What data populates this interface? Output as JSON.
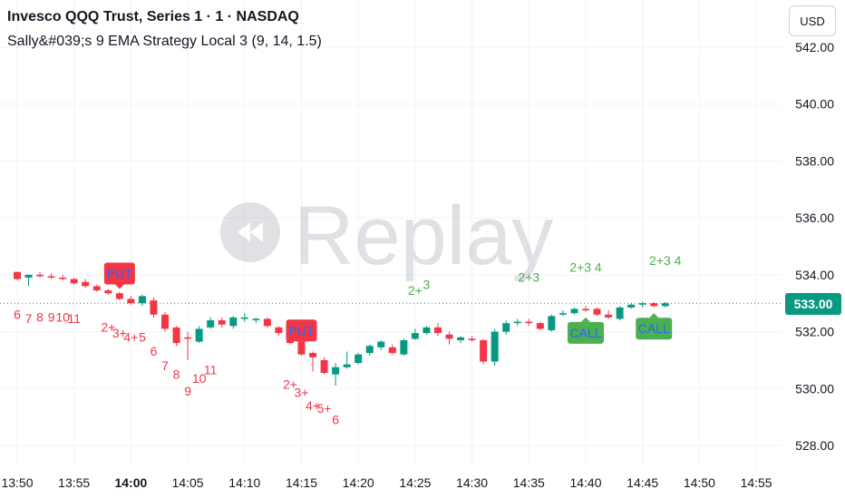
{
  "header": {
    "title": "Invesco QQQ Trust, Series 1 · 1 · NASDAQ",
    "subtitle": "Sally&#039;s 9 EMA Strategy Local 3 (9, 14, 1.5)",
    "currency": "USD"
  },
  "watermark": {
    "text": "Replay",
    "icon": "replay-icon"
  },
  "price_tag": "533.00",
  "colors": {
    "up": "#089981",
    "down": "#f23645",
    "call": "#4caf50",
    "put": "#f23645",
    "label_text": "#2962ff",
    "grid": "#f0f3fa"
  },
  "chart_data": {
    "type": "candlestick",
    "ylim": [
      527.3,
      543.2
    ],
    "yticks": [
      528,
      530,
      532,
      534,
      536,
      538,
      540,
      542
    ],
    "ytick_labels": [
      "528.00",
      "530.00",
      "532.00",
      "534.00",
      "536.00",
      "538.00",
      "540.00",
      "542.00"
    ],
    "xticks": [
      "13:50",
      "13:55",
      "14:00",
      "14:05",
      "14:10",
      "14:15",
      "14:20",
      "14:25",
      "14:30",
      "14:35",
      "14:40",
      "14:45",
      "14:50",
      "14:55"
    ],
    "last_price": 533.0,
    "candles": [
      {
        "t": "13:50",
        "o": 534.1,
        "h": 534.1,
        "l": 533.8,
        "c": 533.85
      },
      {
        "t": "13:51",
        "o": 533.9,
        "h": 534.0,
        "l": 533.6,
        "c": 534.0
      },
      {
        "t": "13:52",
        "o": 534.0,
        "h": 534.1,
        "l": 533.9,
        "c": 533.95
      },
      {
        "t": "13:53",
        "o": 533.95,
        "h": 534.05,
        "l": 533.85,
        "c": 533.9
      },
      {
        "t": "13:54",
        "o": 533.9,
        "h": 534.0,
        "l": 533.8,
        "c": 533.85
      },
      {
        "t": "13:55",
        "o": 533.85,
        "h": 533.9,
        "l": 533.65,
        "c": 533.7
      },
      {
        "t": "13:56",
        "o": 533.75,
        "h": 533.85,
        "l": 533.55,
        "c": 533.6
      },
      {
        "t": "13:57",
        "o": 533.6,
        "h": 533.65,
        "l": 533.4,
        "c": 533.45
      },
      {
        "t": "13:58",
        "o": 533.45,
        "h": 533.5,
        "l": 533.3,
        "c": 533.35
      },
      {
        "t": "13:59",
        "o": 533.35,
        "h": 533.4,
        "l": 533.1,
        "c": 533.15
      },
      {
        "t": "14:00",
        "o": 533.15,
        "h": 533.25,
        "l": 532.95,
        "c": 533.0
      },
      {
        "t": "14:01",
        "o": 533.0,
        "h": 533.3,
        "l": 532.9,
        "c": 533.25
      },
      {
        "t": "14:02",
        "o": 533.1,
        "h": 533.2,
        "l": 532.5,
        "c": 532.6
      },
      {
        "t": "14:03",
        "o": 532.6,
        "h": 532.7,
        "l": 532.0,
        "c": 532.1
      },
      {
        "t": "14:04",
        "o": 532.15,
        "h": 532.2,
        "l": 531.5,
        "c": 531.6
      },
      {
        "t": "14:05",
        "o": 531.8,
        "h": 532.0,
        "l": 531.0,
        "c": 531.75
      },
      {
        "t": "14:06",
        "o": 531.65,
        "h": 532.2,
        "l": 531.6,
        "c": 532.1
      },
      {
        "t": "14:07",
        "o": 532.15,
        "h": 532.5,
        "l": 532.1,
        "c": 532.4
      },
      {
        "t": "14:08",
        "o": 532.4,
        "h": 532.5,
        "l": 532.15,
        "c": 532.25
      },
      {
        "t": "14:09",
        "o": 532.2,
        "h": 532.55,
        "l": 532.1,
        "c": 532.5
      },
      {
        "t": "14:10",
        "o": 532.45,
        "h": 532.65,
        "l": 532.35,
        "c": 532.5
      },
      {
        "t": "14:11",
        "o": 532.4,
        "h": 532.5,
        "l": 532.3,
        "c": 532.45
      },
      {
        "t": "14:12",
        "o": 532.45,
        "h": 532.5,
        "l": 532.15,
        "c": 532.2
      },
      {
        "t": "14:13",
        "o": 532.15,
        "h": 532.2,
        "l": 531.85,
        "c": 531.95
      },
      {
        "t": "14:14",
        "o": 531.9,
        "h": 532.0,
        "l": 531.55,
        "c": 531.6
      },
      {
        "t": "14:15",
        "o": 531.6,
        "h": 531.7,
        "l": 531.15,
        "c": 531.2
      },
      {
        "t": "14:16",
        "o": 531.25,
        "h": 531.3,
        "l": 530.6,
        "c": 531.1
      },
      {
        "t": "14:17",
        "o": 531.0,
        "h": 531.1,
        "l": 530.5,
        "c": 530.55
      },
      {
        "t": "14:18",
        "o": 530.5,
        "h": 530.9,
        "l": 530.1,
        "c": 530.75
      },
      {
        "t": "14:19",
        "o": 530.75,
        "h": 531.3,
        "l": 530.7,
        "c": 530.85
      },
      {
        "t": "14:20",
        "o": 530.9,
        "h": 531.25,
        "l": 530.85,
        "c": 531.2
      },
      {
        "t": "14:21",
        "o": 531.25,
        "h": 531.55,
        "l": 531.15,
        "c": 531.5
      },
      {
        "t": "14:22",
        "o": 531.45,
        "h": 531.7,
        "l": 531.35,
        "c": 531.65
      },
      {
        "t": "14:23",
        "o": 531.45,
        "h": 531.55,
        "l": 531.2,
        "c": 531.25
      },
      {
        "t": "14:24",
        "o": 531.2,
        "h": 531.75,
        "l": 531.15,
        "c": 531.7
      },
      {
        "t": "14:25",
        "o": 531.75,
        "h": 532.1,
        "l": 531.7,
        "c": 531.95
      },
      {
        "t": "14:26",
        "o": 531.95,
        "h": 532.2,
        "l": 531.9,
        "c": 532.15
      },
      {
        "t": "14:27",
        "o": 532.15,
        "h": 532.3,
        "l": 531.85,
        "c": 531.95
      },
      {
        "t": "14:28",
        "o": 531.9,
        "h": 532.0,
        "l": 531.55,
        "c": 531.75
      },
      {
        "t": "14:29",
        "o": 531.7,
        "h": 531.85,
        "l": 531.6,
        "c": 531.8
      },
      {
        "t": "14:30",
        "o": 531.75,
        "h": 531.85,
        "l": 531.65,
        "c": 531.7
      },
      {
        "t": "14:31",
        "o": 531.7,
        "h": 531.75,
        "l": 530.85,
        "c": 530.95
      },
      {
        "t": "14:32",
        "o": 530.95,
        "h": 532.1,
        "l": 530.8,
        "c": 532.0
      },
      {
        "t": "14:33",
        "o": 532.0,
        "h": 532.4,
        "l": 531.9,
        "c": 532.3
      },
      {
        "t": "14:34",
        "o": 532.3,
        "h": 532.45,
        "l": 532.2,
        "c": 532.35
      },
      {
        "t": "14:35",
        "o": 532.35,
        "h": 532.45,
        "l": 532.2,
        "c": 532.3
      },
      {
        "t": "14:36",
        "o": 532.3,
        "h": 532.35,
        "l": 532.05,
        "c": 532.1
      },
      {
        "t": "14:37",
        "o": 532.05,
        "h": 532.6,
        "l": 532.0,
        "c": 532.55
      },
      {
        "t": "14:38",
        "o": 532.6,
        "h": 532.75,
        "l": 532.55,
        "c": 532.65
      },
      {
        "t": "14:39",
        "o": 532.65,
        "h": 532.85,
        "l": 532.6,
        "c": 532.8
      },
      {
        "t": "14:40",
        "o": 532.8,
        "h": 532.9,
        "l": 532.7,
        "c": 532.75
      },
      {
        "t": "14:41",
        "o": 532.8,
        "h": 532.85,
        "l": 532.55,
        "c": 532.6
      },
      {
        "t": "14:42",
        "o": 532.6,
        "h": 532.75,
        "l": 532.45,
        "c": 532.5
      },
      {
        "t": "14:43",
        "o": 532.45,
        "h": 532.9,
        "l": 532.4,
        "c": 532.85
      },
      {
        "t": "14:44",
        "o": 532.85,
        "h": 533.0,
        "l": 532.8,
        "c": 532.95
      },
      {
        "t": "14:45",
        "o": 532.95,
        "h": 533.05,
        "l": 532.85,
        "c": 533.0
      },
      {
        "t": "14:46",
        "o": 533.0,
        "h": 533.05,
        "l": 532.85,
        "c": 532.9
      },
      {
        "t": "14:47",
        "o": 532.9,
        "h": 533.05,
        "l": 532.85,
        "c": 533.0
      }
    ],
    "signals": [
      {
        "type": "PUT",
        "t": "13:59",
        "price": 533.5
      },
      {
        "type": "PUT",
        "t": "14:15",
        "price": 531.5
      },
      {
        "type": "CALL",
        "t": "14:40",
        "price": 532.5
      },
      {
        "type": "CALL",
        "t": "14:46",
        "price": 532.65
      }
    ],
    "annotations": [
      {
        "text": "6",
        "t": "13:50",
        "price": 532.45,
        "color": "down"
      },
      {
        "text": "7",
        "t": "13:51",
        "price": 532.3,
        "color": "down"
      },
      {
        "text": "8",
        "t": "13:52",
        "price": 532.35,
        "color": "down"
      },
      {
        "text": "9",
        "t": "13:53",
        "price": 532.35,
        "color": "down"
      },
      {
        "text": "10",
        "t": "13:54",
        "price": 532.35,
        "color": "down"
      },
      {
        "text": "11",
        "t": "13:55",
        "price": 532.3,
        "color": "down"
      },
      {
        "text": "2+",
        "t": "13:58",
        "price": 532.0,
        "color": "down"
      },
      {
        "text": "3+",
        "t": "13:59",
        "price": 531.8,
        "color": "down"
      },
      {
        "text": "4+",
        "t": "14:00",
        "price": 531.65,
        "color": "down"
      },
      {
        "text": "5",
        "t": "14:01",
        "price": 531.65,
        "color": "down"
      },
      {
        "text": "6",
        "t": "14:02",
        "price": 531.15,
        "color": "down"
      },
      {
        "text": "7",
        "t": "14:03",
        "price": 530.65,
        "color": "down"
      },
      {
        "text": "8",
        "t": "14:04",
        "price": 530.35,
        "color": "down"
      },
      {
        "text": "9",
        "t": "14:05",
        "price": 529.75,
        "color": "down"
      },
      {
        "text": "10",
        "t": "14:06",
        "price": 530.2,
        "color": "down"
      },
      {
        "text": "11",
        "t": "14:07",
        "price": 530.5,
        "color": "down"
      },
      {
        "text": "2+",
        "t": "14:14",
        "price": 530.0,
        "color": "down"
      },
      {
        "text": "3+",
        "t": "14:15",
        "price": 529.7,
        "color": "down"
      },
      {
        "text": "4+",
        "t": "14:16",
        "price": 529.25,
        "color": "down"
      },
      {
        "text": "5+",
        "t": "14:17",
        "price": 529.15,
        "color": "down"
      },
      {
        "text": "6",
        "t": "14:18",
        "price": 528.75,
        "color": "down"
      },
      {
        "text": "2+",
        "t": "14:25",
        "price": 533.3,
        "color": "call"
      },
      {
        "text": "3",
        "t": "14:26",
        "price": 533.5,
        "color": "call"
      },
      {
        "text": "2+3",
        "t": "14:35",
        "price": 533.75,
        "color": "call"
      },
      {
        "text": "2+3 4",
        "t": "14:40",
        "price": 534.1,
        "color": "call"
      },
      {
        "text": "2+3 4",
        "t": "14:47",
        "price": 534.35,
        "color": "call"
      }
    ]
  }
}
